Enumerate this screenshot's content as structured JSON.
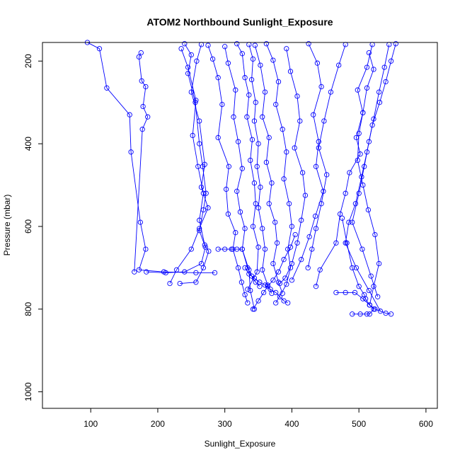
{
  "chart_data": {
    "type": "line",
    "title": "ATOM2 Northbound Sunlight_Exposure",
    "xlabel": "Sunlight_Exposure",
    "ylabel": "Pressure (mbar)",
    "xlim": [
      28,
      617
    ],
    "ylim": [
      1040,
      155
    ],
    "y_reversed": true,
    "x_ticks": [
      100,
      200,
      300,
      400,
      500,
      600
    ],
    "y_ticks": [
      200,
      400,
      600,
      800,
      1000
    ],
    "grid": false,
    "legend": "none",
    "series_color": "#0000ff",
    "marker": "open-circle",
    "series": [
      {
        "x": [
          95,
          113,
          124,
          158,
          160,
          174,
          182,
          172,
          209,
          257,
          285
        ],
        "y": [
          155,
          170,
          265,
          330,
          420,
          590,
          655,
          705,
          710,
          712,
          712
        ]
      },
      {
        "x": [
          175,
          172,
          176,
          182,
          178,
          185,
          177,
          165
        ],
        "y": [
          180,
          190,
          248,
          262,
          310,
          335,
          365,
          710
        ]
      },
      {
        "x": [
          240,
          250,
          245,
          256,
          262,
          267,
          272,
          268,
          262,
          271,
          265,
          240,
          212,
          183
        ],
        "y": [
          158,
          185,
          230,
          300,
          400,
          455,
          520,
          560,
          610,
          650,
          690,
          710,
          712,
          710
        ]
      },
      {
        "x": [
          265,
          258,
          250,
          262,
          270,
          265,
          275,
          262,
          250,
          228,
          218
        ],
        "y": [
          160,
          200,
          275,
          345,
          450,
          505,
          555,
          605,
          655,
          705,
          738
        ]
      },
      {
        "x": [
          235,
          245,
          257,
          252,
          260,
          268,
          262,
          270,
          276,
          268,
          257,
          233
        ],
        "y": [
          170,
          215,
          295,
          380,
          455,
          520,
          585,
          645,
          660,
          700,
          735,
          738
        ]
      },
      {
        "x": [
          275,
          282,
          290,
          296,
          290,
          306,
          302,
          305,
          316,
          312,
          320,
          325,
          330,
          334
        ],
        "y": [
          162,
          195,
          240,
          305,
          385,
          455,
          510,
          570,
          615,
          655,
          700,
          735,
          765,
          785
        ]
      },
      {
        "x": [
          300,
          305,
          316,
          313,
          320,
          326,
          318,
          323,
          330,
          326,
          336,
          338,
          344
        ],
        "y": [
          165,
          205,
          270,
          335,
          395,
          460,
          515,
          565,
          605,
          655,
          705,
          755,
          800
        ]
      },
      {
        "x": [
          318,
          326,
          330,
          336,
          333,
          341,
          338,
          344,
          346,
          342,
          350,
          348,
          334
        ],
        "y": [
          158,
          182,
          240,
          282,
          335,
          390,
          440,
          495,
          545,
          600,
          650,
          710,
          752
        ]
      },
      {
        "x": [
          336,
          342,
          340,
          346,
          344,
          350,
          348,
          353,
          350,
          356,
          360,
          356,
          364,
          370
        ],
        "y": [
          160,
          195,
          245,
          300,
          345,
          400,
          455,
          505,
          555,
          605,
          655,
          705,
          742,
          762
        ]
      },
      {
        "x": [
          345,
          353,
          360,
          356,
          366,
          362,
          370,
          366,
          375,
          378,
          372,
          380,
          386
        ],
        "y": [
          162,
          210,
          275,
          335,
          385,
          445,
          495,
          545,
          590,
          640,
          690,
          735,
          762
        ]
      },
      {
        "x": [
          362,
          372,
          380,
          376,
          386,
          392,
          388,
          396,
          400,
          394,
          398,
          392,
          376
        ],
        "y": [
          158,
          198,
          250,
          305,
          365,
          420,
          485,
          545,
          600,
          655,
          700,
          740,
          785
        ]
      },
      {
        "x": [
          392,
          398,
          408,
          412,
          404,
          416,
          420,
          414,
          408,
          400,
          390,
          382
        ],
        "y": [
          170,
          225,
          285,
          345,
          410,
          470,
          525,
          585,
          640,
          690,
          725,
          738
        ]
      },
      {
        "x": [
          425,
          438,
          444,
          432,
          440,
          436,
          447,
          435,
          426,
          414,
          400
        ],
        "y": [
          158,
          205,
          262,
          330,
          395,
          455,
          515,
          575,
          625,
          680,
          730
        ]
      },
      {
        "x": [
          480,
          470,
          458,
          448,
          440,
          452,
          444,
          436,
          430,
          424
        ],
        "y": [
          160,
          210,
          275,
          345,
          410,
          475,
          545,
          605,
          655,
          700
        ]
      },
      {
        "x": [
          520,
          512,
          498,
          506,
          496,
          502,
          486,
          480,
          472,
          466,
          442,
          436
        ],
        "y": [
          160,
          215,
          270,
          325,
          385,
          425,
          470,
          520,
          570,
          640,
          705,
          745
        ]
      },
      {
        "x": [
          545,
          538,
          530,
          522,
          515,
          508,
          500,
          490,
          505,
          518,
          528
        ],
        "y": [
          160,
          215,
          275,
          340,
          395,
          455,
          520,
          590,
          655,
          720,
          770
        ]
      },
      {
        "x": [
          555,
          548,
          540,
          531,
          520,
          512,
          504,
          495,
          485,
          480,
          496,
          515,
          532
        ],
        "y": [
          158,
          200,
          250,
          300,
          355,
          420,
          480,
          545,
          590,
          640,
          700,
          755,
          805
        ]
      },
      {
        "x": [
          515,
          522,
          512,
          506,
          500,
          498,
          506,
          514,
          524,
          530,
          522,
          516
        ],
        "y": [
          180,
          220,
          265,
          325,
          375,
          440,
          500,
          560,
          620,
          690,
          745,
          790
        ]
      },
      {
        "x": [
          475,
          482,
          490,
          500,
          508,
          510,
          516,
          524,
          540,
          548
        ],
        "y": [
          580,
          640,
          700,
          745,
          765,
          775,
          790,
          800,
          810,
          812
        ]
      },
      {
        "x": [
          466,
          480,
          494,
          506,
          516,
          522,
          516,
          512,
          502,
          490
        ],
        "y": [
          760,
          760,
          760,
          775,
          790,
          800,
          812,
          812,
          812,
          812
        ]
      },
      {
        "x": [
          405,
          398,
          388,
          380,
          372,
          364,
          358,
          350,
          342
        ],
        "y": [
          620,
          650,
          680,
          710,
          730,
          745,
          760,
          780,
          800
        ]
      },
      {
        "x": [
          330,
          336,
          344,
          352,
          360,
          368,
          376,
          382,
          388,
          394
        ],
        "y": [
          700,
          715,
          725,
          735,
          742,
          752,
          760,
          770,
          780,
          785
        ]
      },
      {
        "x": [
          290,
          300,
          310,
          318,
          326,
          334,
          340,
          346,
          352
        ],
        "y": [
          655,
          655,
          655,
          655,
          655,
          700,
          720,
          735,
          745
        ]
      }
    ]
  }
}
